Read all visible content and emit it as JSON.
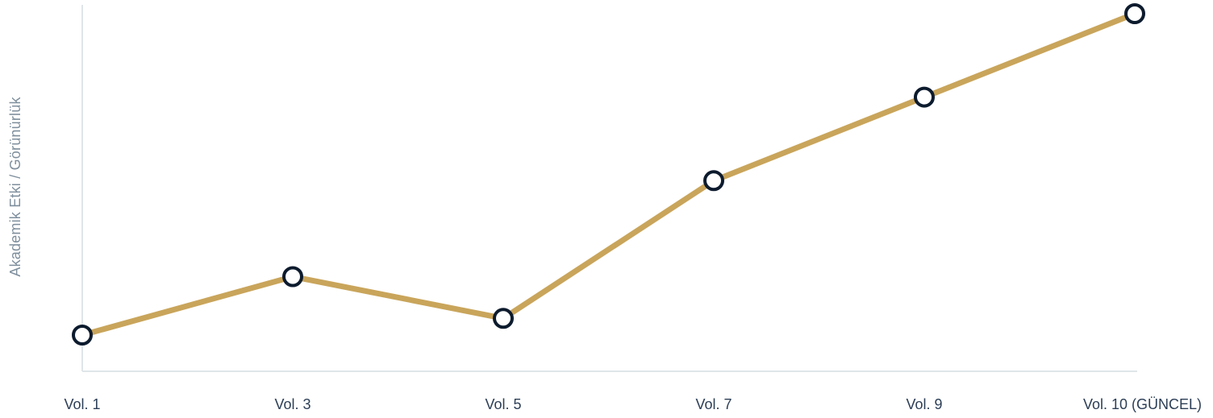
{
  "chart_data": {
    "type": "line",
    "title": "",
    "xlabel": "",
    "ylabel": "Akademik Etki / Görünürlük",
    "categories": [
      "Vol. 1",
      "Vol. 3",
      "Vol. 5",
      "Vol. 7",
      "Vol. 9",
      "Vol. 10 (GÜNCEL)"
    ],
    "series": [
      {
        "values": [
          10,
          24,
          14,
          47,
          67,
          87
        ]
      }
    ],
    "ylim": [
      0,
      87
    ],
    "y_ticks_shown": false,
    "grid": false,
    "legend": "none"
  },
  "colors": {
    "line": "#c9a55b",
    "marker_stroke": "#0d1b2e",
    "marker_fill": "#ffffff",
    "axis": "#dfe6ea",
    "tick_text": "#2c3e56",
    "axis_title": "#7f8f9d"
  }
}
